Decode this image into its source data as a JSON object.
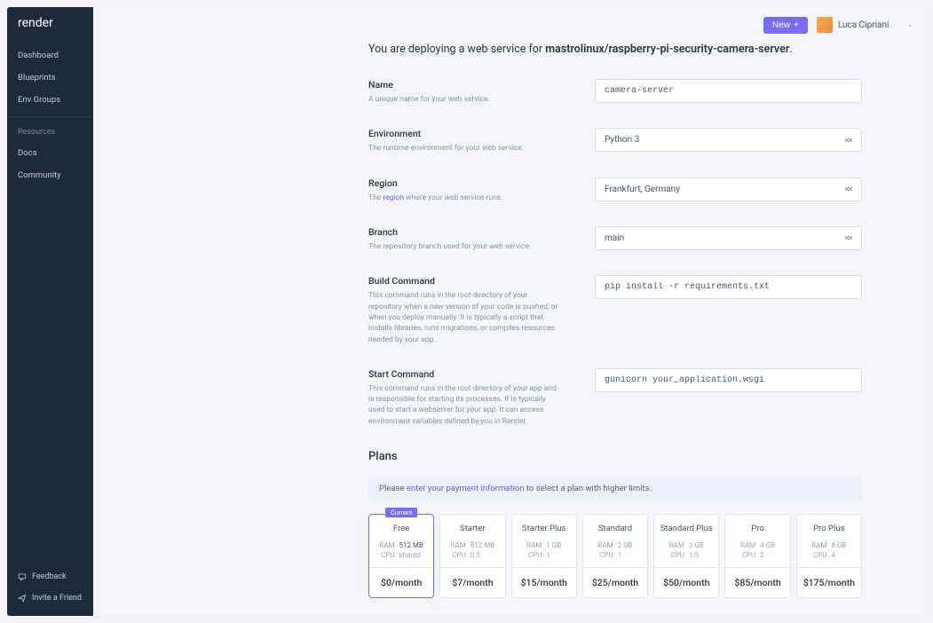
{
  "brand": "render",
  "sidebar": {
    "nav": [
      {
        "label": "Dashboard"
      },
      {
        "label": "Blueprints"
      },
      {
        "label": "Env Groups"
      }
    ],
    "resources_label": "Resources",
    "resources": [
      {
        "label": "Docs"
      },
      {
        "label": "Community"
      }
    ],
    "footer": [
      {
        "label": "Feedback"
      },
      {
        "label": "Invite a Friend"
      }
    ]
  },
  "topbar": {
    "new_label": "New",
    "user_name": "Luca Cipriani"
  },
  "heading": {
    "prefix": "You are deploying a web service for ",
    "repo": "mastrolinux/raspberry-pi-security-camera-server",
    "suffix": "."
  },
  "fields": {
    "name": {
      "label": "Name",
      "help": "A unique name for your web service.",
      "value": "camera-server"
    },
    "environment": {
      "label": "Environment",
      "help": "The runtime environment for your web service.",
      "value": "Python 3"
    },
    "region": {
      "label": "Region",
      "help_pre": "The ",
      "help_link": "region",
      "help_post": " where your web service runs.",
      "value": "Frankfurt, Germany"
    },
    "branch": {
      "label": "Branch",
      "help": "The repository branch used for your web service.",
      "value": "main"
    },
    "build": {
      "label": "Build Command",
      "help": "This command runs in the root directory of your repository when a new version of your code is pushed, or when you deploy manually. It is typically a script that installs libraries, runs migrations, or compiles resources needed by your app.",
      "value": "pip install -r requirements.txt"
    },
    "start": {
      "label": "Start Command",
      "help": "This command runs in the root directory of your app and is responsible for starting its processes. It is typically used to start a webserver for your app. It can access environment variables defined by you in Render.",
      "value": "gunicorn your_application.wsgi"
    }
  },
  "plans": {
    "heading": "Plans",
    "info_pre": "Please ",
    "info_link": "enter your payment information",
    "info_post": " to select a plan with higher limits.",
    "current_badge": "Current",
    "items": [
      {
        "name": "Free",
        "ram": "512 MB",
        "cpu": "shared",
        "price": "$0/month",
        "selected": true
      },
      {
        "name": "Starter",
        "ram": "512 MB",
        "cpu": "0.5",
        "price": "$7/month"
      },
      {
        "name": "Starter Plus",
        "ram": "1 GB",
        "cpu": "1",
        "price": "$15/month"
      },
      {
        "name": "Standard",
        "ram": "2 GB",
        "cpu": "1",
        "price": "$25/month"
      },
      {
        "name": "Standard Plus",
        "ram": "3 GB",
        "cpu": "1.5",
        "price": "$50/month"
      },
      {
        "name": "Pro",
        "ram": "4 GB",
        "cpu": "2",
        "price": "$85/month"
      },
      {
        "name": "Pro Plus",
        "ram": "8 GB",
        "cpu": "4",
        "price": "$175/month"
      }
    ],
    "spec_labels": {
      "ram": "RAM",
      "cpu": "CPU"
    }
  },
  "colors": {
    "accent": "#7a6bf2",
    "sidebar_bg": "#1e2a3a",
    "page_bg": "#f4f6fb",
    "border": "#d8dce6",
    "muted_text": "#8892a6"
  }
}
